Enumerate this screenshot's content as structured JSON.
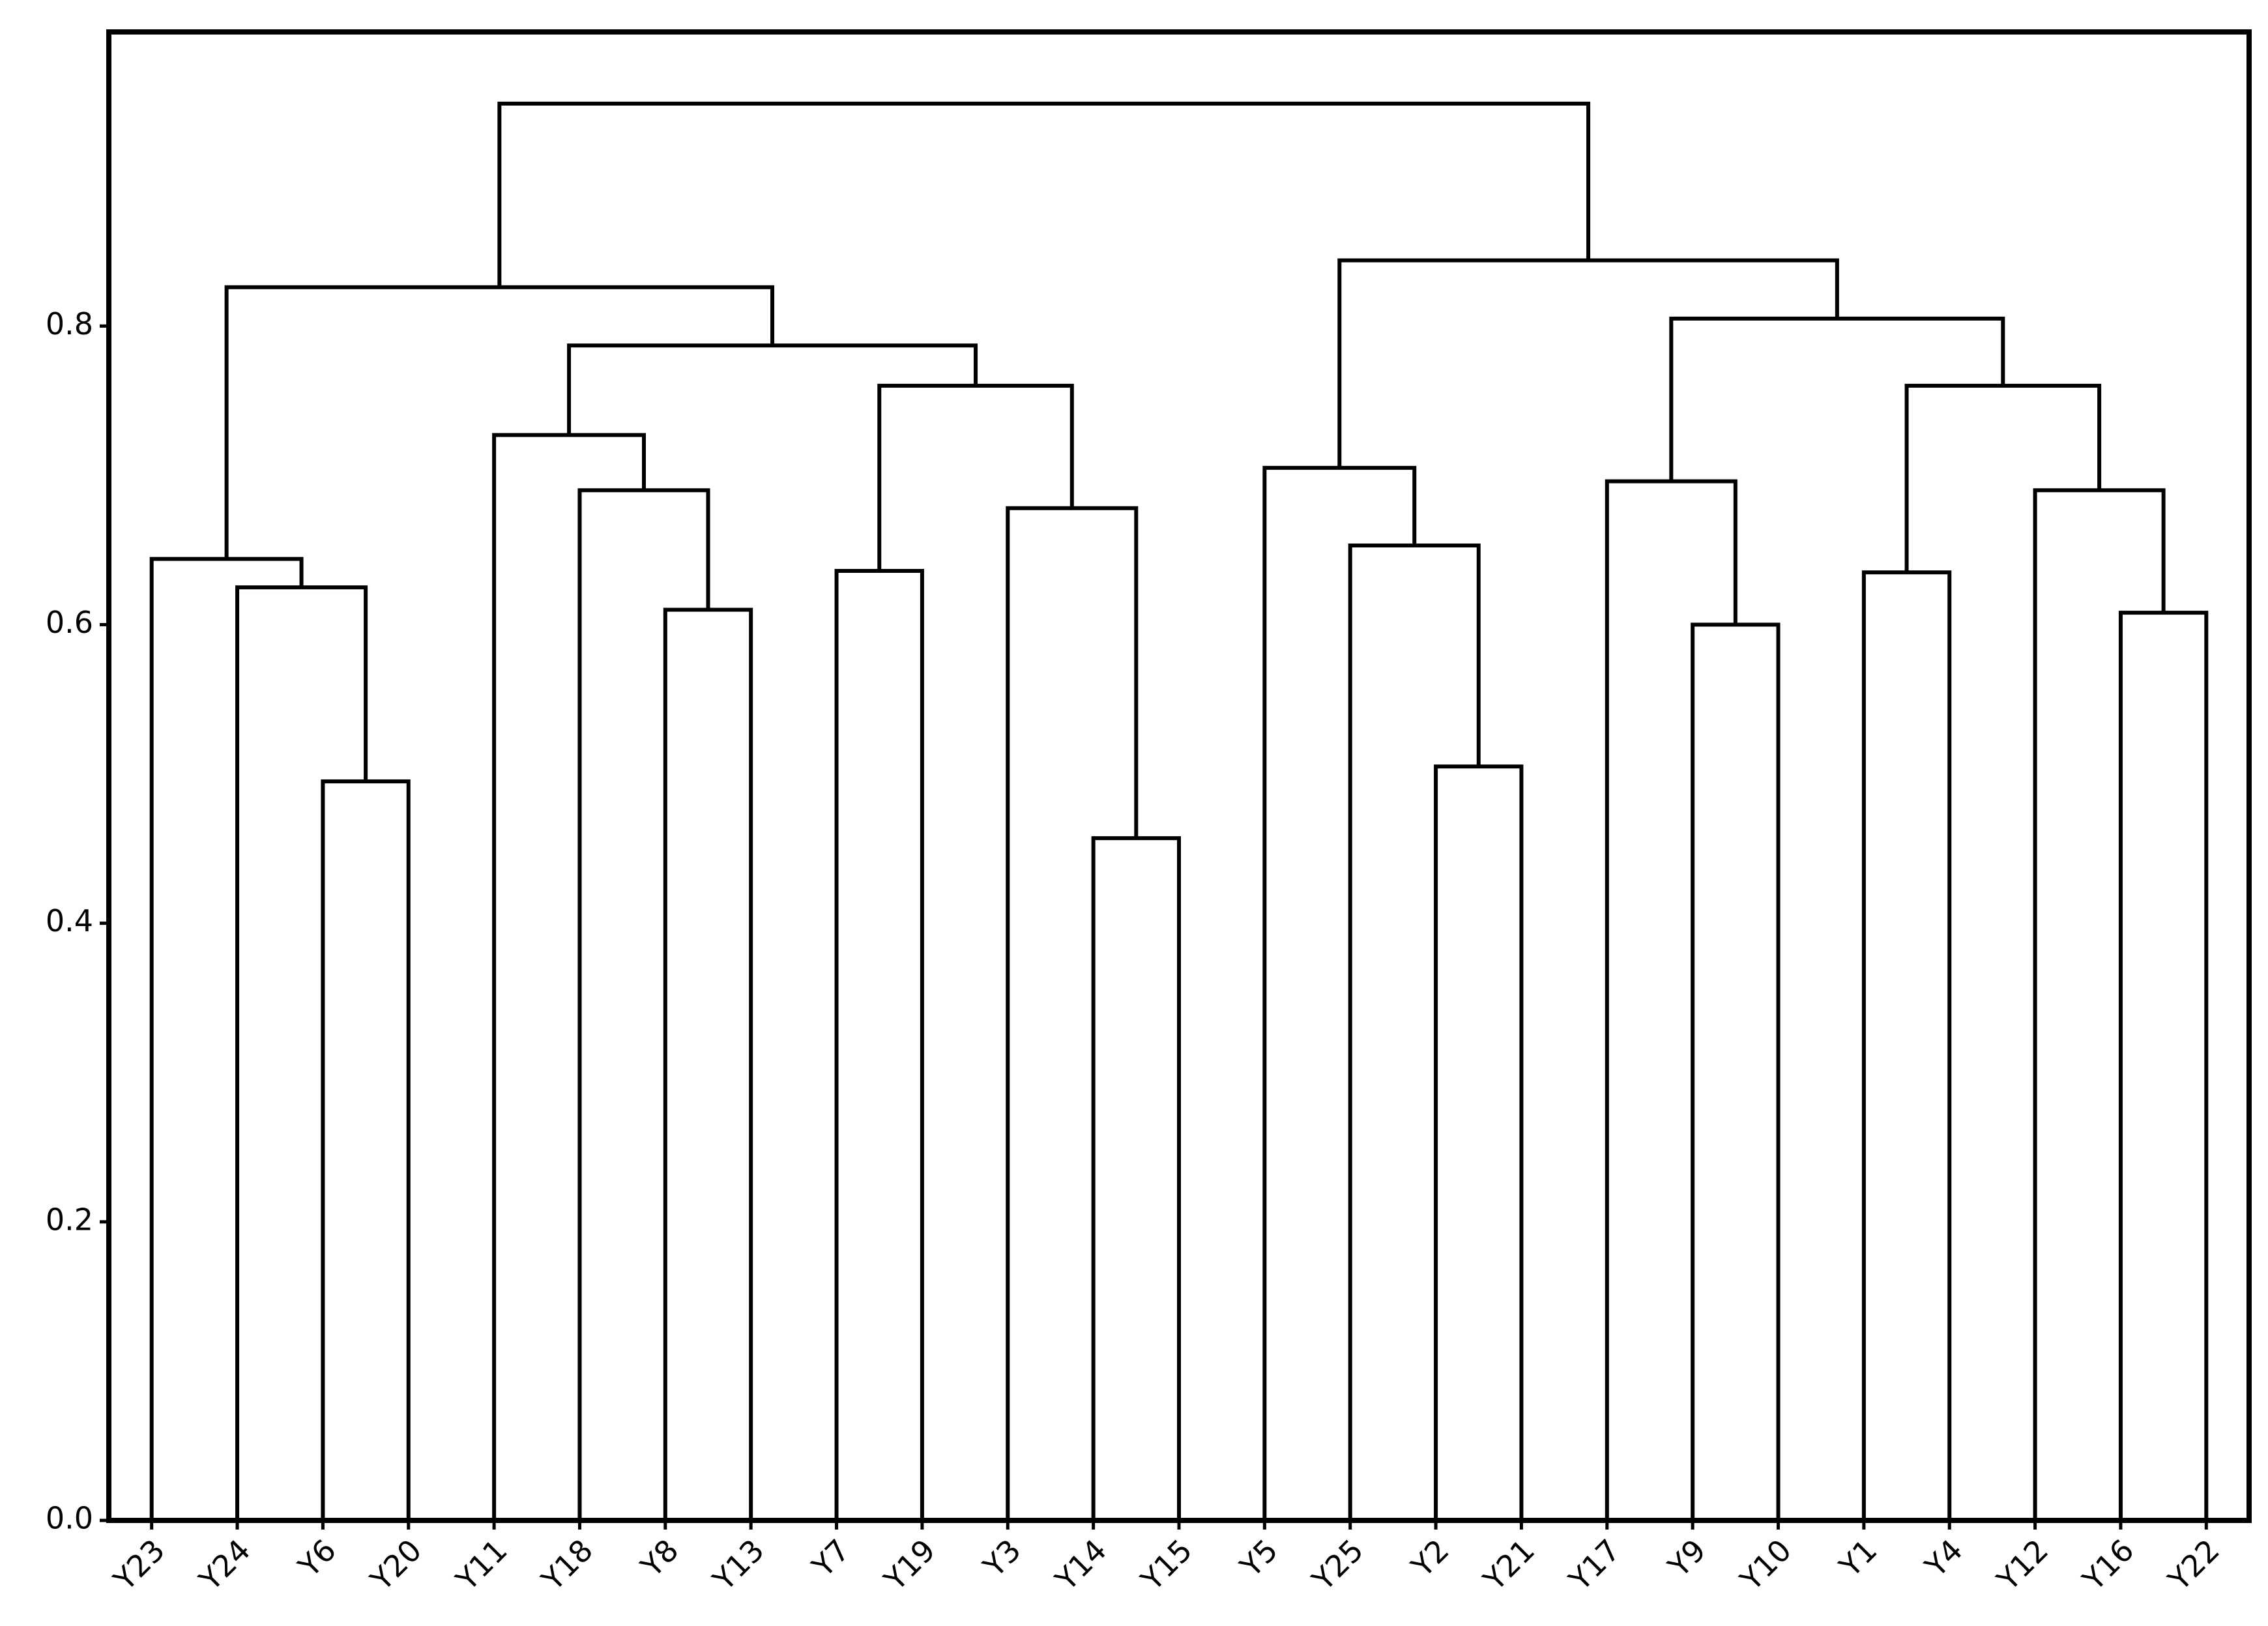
{
  "chart_data": {
    "type": "dendrogram",
    "leaves": [
      "Y23",
      "Y24",
      "Y6",
      "Y20",
      "Y11",
      "Y18",
      "Y8",
      "Y13",
      "Y7",
      "Y19",
      "Y3",
      "Y14",
      "Y15",
      "Y5",
      "Y25",
      "Y2",
      "Y21",
      "Y17",
      "Y9",
      "Y10",
      "Y1",
      "Y4",
      "Y12",
      "Y16",
      "Y22"
    ],
    "merges": [
      {
        "children": [
          2,
          3
        ],
        "height": 0.495
      },
      {
        "children": [
          1,
          25
        ],
        "height": 0.625
      },
      {
        "children": [
          0,
          26
        ],
        "height": 0.644
      },
      {
        "children": [
          6,
          7
        ],
        "height": 0.61
      },
      {
        "children": [
          5,
          28
        ],
        "height": 0.69
      },
      {
        "children": [
          4,
          29
        ],
        "height": 0.727
      },
      {
        "children": [
          8,
          9
        ],
        "height": 0.636
      },
      {
        "children": [
          11,
          12
        ],
        "height": 0.457
      },
      {
        "children": [
          10,
          32
        ],
        "height": 0.678
      },
      {
        "children": [
          31,
          33
        ],
        "height": 0.76
      },
      {
        "children": [
          30,
          34
        ],
        "height": 0.787
      },
      {
        "children": [
          27,
          35
        ],
        "height": 0.826
      },
      {
        "children": [
          15,
          16
        ],
        "height": 0.505
      },
      {
        "children": [
          14,
          37
        ],
        "height": 0.653
      },
      {
        "children": [
          13,
          38
        ],
        "height": 0.705
      },
      {
        "children": [
          18,
          19
        ],
        "height": 0.6
      },
      {
        "children": [
          17,
          40
        ],
        "height": 0.696
      },
      {
        "children": [
          20,
          21
        ],
        "height": 0.635
      },
      {
        "children": [
          23,
          24
        ],
        "height": 0.608
      },
      {
        "children": [
          22,
          43
        ],
        "height": 0.69
      },
      {
        "children": [
          42,
          44
        ],
        "height": 0.76
      },
      {
        "children": [
          41,
          45
        ],
        "height": 0.805
      },
      {
        "children": [
          39,
          46
        ],
        "height": 0.844
      },
      {
        "children": [
          36,
          47
        ],
        "height": 0.949
      }
    ],
    "color": "#000000",
    "ylim": [
      0,
      0.997
    ],
    "yticks": [
      {
        "value": 0,
        "label": "0.0"
      },
      0.2,
      0.4,
      0.6,
      0.8
    ]
  }
}
